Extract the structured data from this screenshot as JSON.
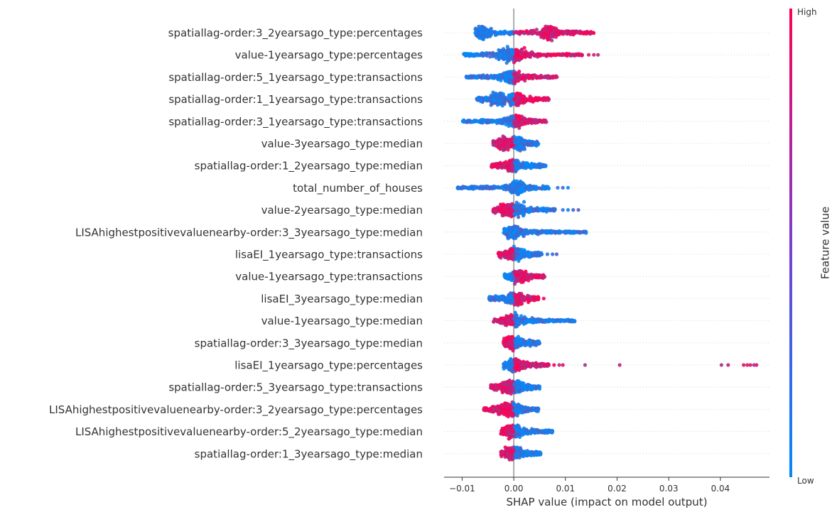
{
  "chart_data": {
    "type": "scatter",
    "subtype": "shap-beeswarm",
    "title": "",
    "xlabel": "SHAP value (impact on model output)",
    "ylabel": "",
    "xlim": [
      -0.0135,
      0.0495
    ],
    "xticks": [
      -0.01,
      0.0,
      0.01,
      0.02,
      0.03,
      0.04
    ],
    "xtick_labels": [
      "−0.01",
      "0.00",
      "0.01",
      "0.02",
      "0.03",
      "0.04"
    ],
    "zero_line": true,
    "grid": false,
    "colorbar": {
      "label": "Feature value",
      "high_label": "High",
      "low_label": "Low",
      "high_color": "#ff0052",
      "low_color": "#008bfb"
    },
    "features": [
      {
        "name": "spatiallag-order:3_2yearsago_type:percentages",
        "min": -0.0075,
        "max": 0.0155,
        "neg_color": "low",
        "pos_color": "high",
        "clusters": [
          -0.0062,
          0.0068
        ],
        "outliers": []
      },
      {
        "name": "value-1yearsago_type:percentages",
        "min": -0.0098,
        "max": 0.0135,
        "neg_color": "low",
        "pos_color": "high",
        "clusters": [
          -0.0015,
          0.0005
        ],
        "outliers": [
          0.0145,
          0.0155,
          0.0163
        ]
      },
      {
        "name": "spatiallag-order:5_1yearsago_type:transactions",
        "min": -0.0092,
        "max": 0.0085,
        "neg_color": "low",
        "pos_color": "high",
        "clusters": [
          -0.0003
        ],
        "outliers": []
      },
      {
        "name": "spatiallag-order:1_1yearsago_type:transactions",
        "min": -0.0072,
        "max": 0.0068,
        "neg_color": "low",
        "pos_color": "high",
        "clusters": [
          -0.003,
          0.0005
        ],
        "outliers": []
      },
      {
        "name": "spatiallag-order:3_1yearsago_type:transactions",
        "min": -0.01,
        "max": 0.0065,
        "neg_color": "low",
        "pos_color": "high",
        "clusters": [
          0.0003
        ],
        "outliers": []
      },
      {
        "name": "value-3yearsago_type:median",
        "min": -0.004,
        "max": 0.0048,
        "neg_color": "high",
        "pos_color": "low",
        "clusters": [
          -0.0018,
          0.001
        ],
        "outliers": []
      },
      {
        "name": "spatiallag-order:1_2yearsago_type:median",
        "min": -0.0045,
        "max": 0.0062,
        "neg_color": "high",
        "pos_color": "low",
        "clusters": [
          0.0
        ],
        "outliers": []
      },
      {
        "name": "total_number_of_houses",
        "min": -0.011,
        "max": 0.0068,
        "neg_color": "low",
        "pos_color": "low",
        "clusters": [
          0.0005
        ],
        "outliers": [
          0.0085,
          0.0095,
          0.0105
        ]
      },
      {
        "name": "value-2yearsago_type:median",
        "min": -0.004,
        "max": 0.008,
        "neg_color": "high",
        "pos_color": "low",
        "clusters": [
          -0.0015,
          0.0005
        ],
        "outliers": [
          0.0095,
          0.0105,
          0.0115,
          0.0125
        ]
      },
      {
        "name": "LISAhighestpositivevaluenearby-order:3_3yearsago_type:median",
        "min": -0.002,
        "max": 0.014,
        "neg_color": "low",
        "pos_color": "low",
        "clusters": [
          0.0
        ],
        "outliers": []
      },
      {
        "name": "lisaEI_1yearsago_type:transactions",
        "min": -0.003,
        "max": 0.0055,
        "neg_color": "high",
        "pos_color": "low",
        "clusters": [
          0.0002
        ],
        "outliers": [
          0.0065,
          0.0075,
          0.0083
        ]
      },
      {
        "name": "value-1yearsago_type:transactions",
        "min": -0.0018,
        "max": 0.006,
        "neg_color": "low",
        "pos_color": "high",
        "clusters": [
          0.0008
        ],
        "outliers": []
      },
      {
        "name": "lisaEI_3yearsago_type:median",
        "min": -0.0048,
        "max": 0.0048,
        "neg_color": "low",
        "pos_color": "high",
        "clusters": [
          0.0002
        ],
        "outliers": [
          0.0058
        ]
      },
      {
        "name": "value-1yearsago_type:median",
        "min": -0.004,
        "max": 0.0118,
        "neg_color": "high",
        "pos_color": "low",
        "clusters": [
          0.0
        ],
        "outliers": []
      },
      {
        "name": "spatiallag-order:3_3yearsago_type:median",
        "min": -0.002,
        "max": 0.005,
        "neg_color": "high",
        "pos_color": "low",
        "clusters": [
          -0.0003
        ],
        "outliers": []
      },
      {
        "name": "lisaEI_1yearsago_type:percentages",
        "min": -0.002,
        "max": 0.0068,
        "neg_color": "low",
        "pos_color": "high",
        "clusters": [
          0.0
        ],
        "outliers": [
          0.0078,
          0.0088,
          0.0095,
          0.0138,
          0.0205,
          0.0402,
          0.0415,
          0.0445,
          0.0452,
          0.0458,
          0.0465,
          0.047
        ]
      },
      {
        "name": "spatiallag-order:5_3yearsago_type:transactions",
        "min": -0.0045,
        "max": 0.005,
        "neg_color": "high",
        "pos_color": "low",
        "clusters": [
          -0.001,
          0.0003
        ],
        "outliers": []
      },
      {
        "name": "LISAhighestpositivevaluenearby-order:3_2yearsago_type:percentages",
        "min": -0.0058,
        "max": 0.0048,
        "neg_color": "high",
        "pos_color": "low",
        "clusters": [
          -0.0015,
          0.0
        ],
        "outliers": []
      },
      {
        "name": "LISAhighestpositivevaluenearby-order:5_2yearsago_type:median",
        "min": -0.0025,
        "max": 0.0075,
        "neg_color": "high",
        "pos_color": "low",
        "clusters": [
          0.0
        ],
        "outliers": []
      },
      {
        "name": "spatiallag-order:1_3yearsago_type:median",
        "min": -0.0025,
        "max": 0.0052,
        "neg_color": "high",
        "pos_color": "low",
        "clusters": [
          0.0
        ],
        "outliers": []
      }
    ]
  }
}
